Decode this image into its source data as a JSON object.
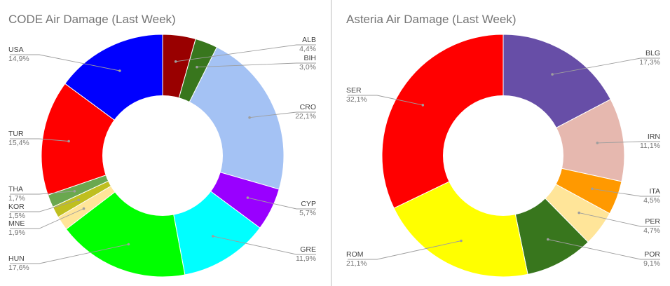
{
  "chart_data": [
    {
      "type": "pie",
      "title": "CODE Air Damage (Last Week)",
      "donut": true,
      "categories": [
        "ALB",
        "BIH",
        "CRO",
        "CYP",
        "GRE",
        "HUN",
        "MNE",
        "KOR",
        "THA",
        "TUR",
        "USA"
      ],
      "values": [
        4.4,
        3.0,
        22.1,
        5.7,
        11.9,
        17.6,
        1.9,
        1.5,
        1.7,
        15.4,
        14.9
      ],
      "value_labels": [
        "4,4%",
        "3,0%",
        "22,1%",
        "5,7%",
        "11,9%",
        "17,6%",
        "1,9%",
        "1,5%",
        "1,7%",
        "15,4%",
        "14,9%"
      ],
      "colors": [
        "#990000",
        "#38761d",
        "#a4c2f4",
        "#9900ff",
        "#00ffff",
        "#00ff00",
        "#ffe599",
        "#bfbf1f",
        "#6aa84f",
        "#ff0000",
        "#0000ff"
      ]
    },
    {
      "type": "pie",
      "title": "Asteria Air Damage (Last Week)",
      "donut": true,
      "categories": [
        "BLG",
        "IRN",
        "ITA",
        "PER",
        "POR",
        "ROM",
        "SER"
      ],
      "values": [
        17.3,
        11.1,
        4.5,
        4.7,
        9.1,
        21.1,
        32.1
      ],
      "value_labels": [
        "17,3%",
        "11,1%",
        "4,5%",
        "4,7%",
        "9,1%",
        "21,1%",
        "32,1%"
      ],
      "colors": [
        "#674ea7",
        "#e6b8af",
        "#ff9900",
        "#ffe599",
        "#38761d",
        "#ffff00",
        "#ff0000"
      ]
    }
  ]
}
